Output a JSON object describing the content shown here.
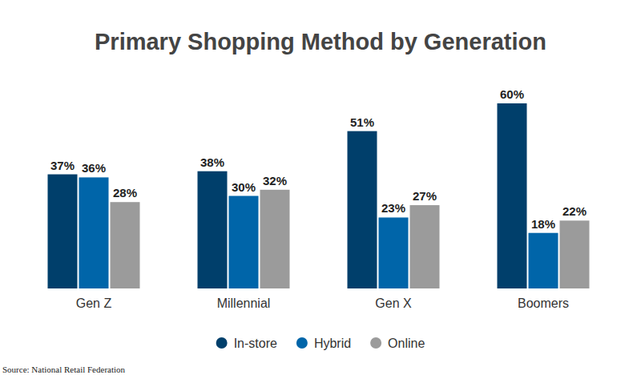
{
  "chart_data": {
    "type": "bar",
    "title": "Primary Shopping Method by Generation",
    "source": "Source: National Retail Federation",
    "categories": [
      "Gen Z",
      "Millennial",
      "Gen X",
      "Boomers"
    ],
    "series": [
      {
        "name": "In-store",
        "color": "#003f6b",
        "values": [
          37,
          38,
          51,
          60
        ],
        "value_labels": [
          "37%",
          "38%",
          "51%",
          "60%"
        ]
      },
      {
        "name": "Hybrid",
        "color": "#0065a9",
        "values": [
          36,
          30,
          23,
          18
        ],
        "value_labels": [
          "36%",
          "30%",
          "23%",
          "18%"
        ]
      },
      {
        "name": "Online",
        "color": "#9b9b9b",
        "values": [
          28,
          32,
          27,
          22
        ],
        "value_labels": [
          "28%",
          "32%",
          "27%",
          "22%"
        ]
      }
    ],
    "ylim": [
      0,
      60
    ],
    "data_labels": true,
    "tick_labels": "x",
    "legend": "bottom",
    "grid": false
  }
}
